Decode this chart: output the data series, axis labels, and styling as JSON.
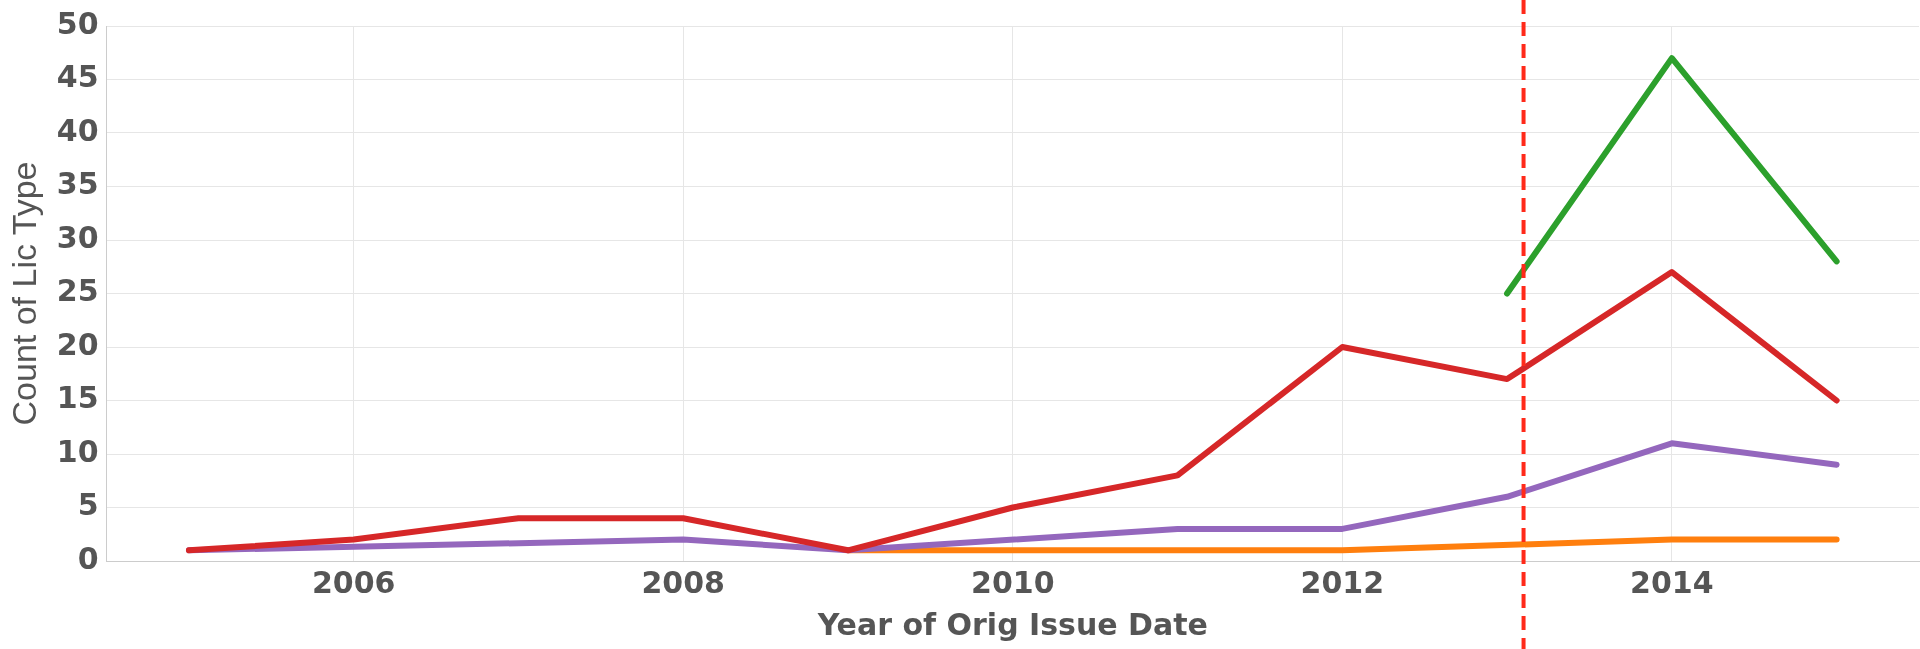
{
  "chart_data": {
    "type": "line",
    "xlabel": "Year of Orig Issue Date",
    "ylabel": "Count of Lic Type",
    "xlim": [
      2004.5,
      2015.5
    ],
    "xticks": [
      2006,
      2008,
      2010,
      2012,
      2014
    ],
    "ylim": [
      0,
      50
    ],
    "yticks": [
      0,
      5,
      10,
      15,
      20,
      25,
      30,
      35,
      40,
      45,
      50
    ],
    "grid": true,
    "legend": false,
    "marker": "none",
    "series": [
      {
        "color": "#d62728",
        "x": [
          2005,
          2006,
          2007,
          2008,
          2009,
          2010,
          2011,
          2012,
          2013,
          2014,
          2015
        ],
        "values": [
          1,
          2,
          4,
          4,
          1,
          5,
          8,
          20,
          17,
          27,
          15
        ]
      },
      {
        "color": "#9467bd",
        "x": [
          2005,
          2008,
          2009,
          2011,
          2012,
          2013,
          2014,
          2015
        ],
        "values": [
          1,
          2,
          1,
          3,
          3,
          6,
          11,
          9
        ]
      },
      {
        "color": "#ff7f0e",
        "x": [
          2009,
          2010,
          2011,
          2012,
          2014,
          2015
        ],
        "values": [
          1,
          1,
          1,
          1,
          2,
          2
        ]
      },
      {
        "color": "#2ca02c",
        "x": [
          2013,
          2014,
          2015
        ],
        "values": [
          25,
          47,
          28
        ]
      }
    ],
    "ref_lines": [
      {
        "axis": "x",
        "value": 2013.1,
        "color": "#ff2a1a",
        "line_style": "dashed"
      }
    ]
  }
}
